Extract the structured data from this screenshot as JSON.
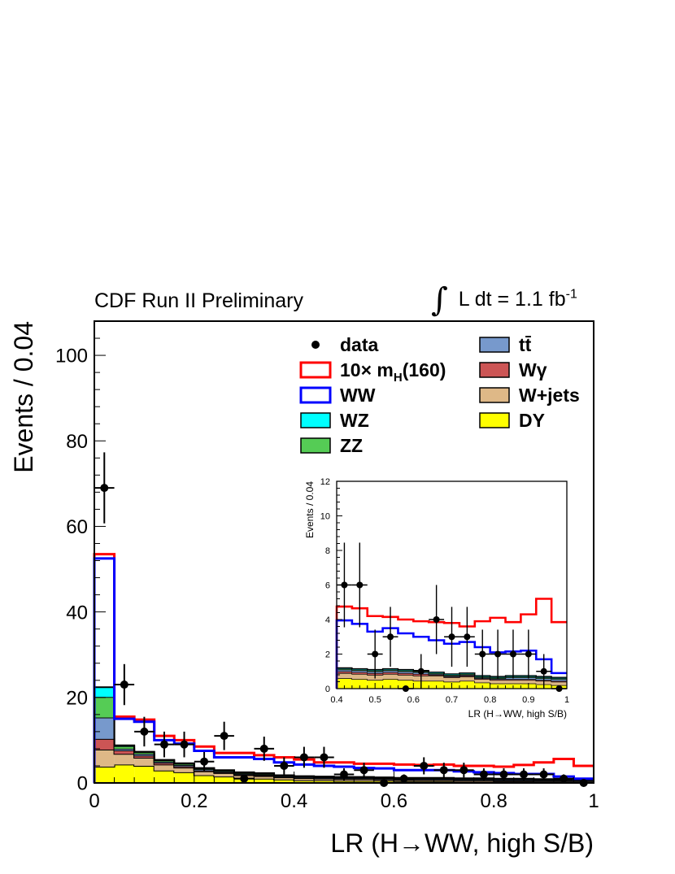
{
  "header": {
    "left": "CDF Run II Preliminary",
    "integral": "∫",
    "lumi_text": "L dt = 1.1 fb",
    "lumi_exp": "-1"
  },
  "colors": {
    "signal": "#ff0000",
    "ww": "#0000ff",
    "wz": "#00ffff",
    "zz": "#55cc55",
    "tt": "#7799cc",
    "wgamma": "#cc5555",
    "wjets": "#deb887",
    "dy": "#ffff00"
  },
  "legend": [
    {
      "key": "data",
      "label": "data",
      "style": "marker"
    },
    {
      "key": "signal",
      "label": "10× m",
      "sub": "H",
      "tail": "(160)",
      "style": "line"
    },
    {
      "key": "ww",
      "label": "WW",
      "style": "line"
    },
    {
      "key": "wz",
      "label": "WZ",
      "style": "fill"
    },
    {
      "key": "zz",
      "label": "ZZ",
      "style": "fill"
    },
    {
      "key": "tt",
      "label": "tt̄",
      "style": "fill"
    },
    {
      "key": "wgamma",
      "label": "Wγ",
      "style": "fill"
    },
    {
      "key": "wjets",
      "label": "W+jets",
      "style": "fill"
    },
    {
      "key": "dy",
      "label": "DY",
      "style": "fill"
    }
  ],
  "chart_data": [
    {
      "type": "histogram",
      "name": "main",
      "xlabel": "LR (H→WW, high S/B)",
      "ylabel": "Events / 0.04",
      "xlim": [
        0,
        1
      ],
      "ylim": [
        0,
        108
      ],
      "xticks": [
        0,
        0.2,
        0.4,
        0.6,
        0.8,
        1
      ],
      "xticklabels": [
        "0",
        "0.2",
        "0.4",
        "0.6",
        "0.8",
        "1"
      ],
      "yticks": [
        0,
        20,
        40,
        60,
        80,
        100
      ],
      "yticklabels": [
        "0",
        "20",
        "40",
        "60",
        "80",
        "100"
      ],
      "bin_edges": [
        0,
        0.04,
        0.08,
        0.12,
        0.16,
        0.2,
        0.24,
        0.28,
        0.32,
        0.36,
        0.4,
        0.44,
        0.48,
        0.52,
        0.56,
        0.6,
        0.64,
        0.68,
        0.72,
        0.76,
        0.8,
        0.84,
        0.88,
        0.92,
        0.96,
        1.0
      ],
      "stack_order": [
        "dy",
        "wjets",
        "wgamma",
        "tt",
        "zz",
        "wz"
      ],
      "stack": {
        "dy": [
          3.8,
          4.3,
          4.0,
          2.9,
          2.5,
          1.8,
          1.5,
          1.2,
          1.0,
          0.8,
          0.6,
          0.6,
          0.5,
          0.5,
          0.5,
          0.4,
          0.4,
          0.4,
          0.3,
          0.3,
          0.3,
          0.3,
          0.2,
          0.2,
          0.2
        ],
        "wjets": [
          4.0,
          2.5,
          1.9,
          1.4,
          1.1,
          0.9,
          0.8,
          0.6,
          0.6,
          0.5,
          0.5,
          0.4,
          0.4,
          0.4,
          0.3,
          0.3,
          0.3,
          0.3,
          0.3,
          0.3,
          0.2,
          0.2,
          0.2,
          0.2,
          0.2
        ],
        "wgamma": [
          2.5,
          0.8,
          0.5,
          0.4,
          0.3,
          0.2,
          0.2,
          0.2,
          0.2,
          0.1,
          0.1,
          0.1,
          0.1,
          0.1,
          0.1,
          0.1,
          0.1,
          0.1,
          0.1,
          0.1,
          0.1,
          0.1,
          0.1,
          0.1,
          0.1
        ],
        "tt": [
          5.0,
          0.4,
          0.4,
          0.3,
          0.3,
          0.3,
          0.2,
          0.2,
          0.2,
          0.2,
          0.2,
          0.2,
          0.2,
          0.2,
          0.2,
          0.2,
          0.2,
          0.2,
          0.2,
          0.2,
          0.2,
          0.2,
          0.2,
          0.2,
          0.2
        ],
        "zz": [
          4.8,
          0.6,
          0.4,
          0.3,
          0.3,
          0.2,
          0.2,
          0.2,
          0.2,
          0.1,
          0.1,
          0.1,
          0.1,
          0.1,
          0.1,
          0.1,
          0.1,
          0.1,
          0.1,
          0.1,
          0.1,
          0.1,
          0.1,
          0.1,
          0.1
        ],
        "wz": [
          2.3,
          0.2,
          0.1,
          0.1,
          0.1,
          0.1,
          0.1,
          0.1,
          0.1,
          0.1,
          0.1,
          0.1,
          0.1,
          0.1,
          0.1,
          0.1,
          0.1,
          0.1,
          0.1,
          0.1,
          0.1,
          0.1,
          0.1,
          0.1,
          0.1
        ]
      },
      "ww_total": [
        52.5,
        15.0,
        14.3,
        10.0,
        9.2,
        7.5,
        6.0,
        6.0,
        5.6,
        4.8,
        4.3,
        4.0,
        3.8,
        3.5,
        3.4,
        3.0,
        3.0,
        3.0,
        2.7,
        2.5,
        2.3,
        2.1,
        2.1,
        1.5,
        1.0
      ],
      "signal_total": [
        53.5,
        15.5,
        14.8,
        11.0,
        10.0,
        8.5,
        7.0,
        7.0,
        6.5,
        6.0,
        5.5,
        4.8,
        4.8,
        4.5,
        4.5,
        4.3,
        4.2,
        4.3,
        4.0,
        4.0,
        3.8,
        4.2,
        4.8,
        5.6,
        4.0
      ],
      "data": {
        "x": [
          0.02,
          0.06,
          0.1,
          0.14,
          0.18,
          0.22,
          0.26,
          0.3,
          0.34,
          0.38,
          0.42,
          0.46,
          0.5,
          0.54,
          0.58,
          0.62,
          0.66,
          0.7,
          0.74,
          0.78,
          0.82,
          0.86,
          0.9,
          0.94,
          0.98
        ],
        "y": [
          69,
          23,
          12,
          9,
          9,
          5,
          11,
          1,
          8,
          4,
          6,
          6,
          2,
          3,
          0,
          1,
          4,
          3,
          3,
          2,
          2,
          2,
          2,
          1,
          0
        ]
      }
    },
    {
      "type": "histogram",
      "name": "inset",
      "xlabel": "LR (H→WW, high S/B)",
      "ylabel": "Events / 0.04",
      "xlim": [
        0.4,
        1
      ],
      "ylim": [
        0,
        12
      ],
      "xticks": [
        0.4,
        0.5,
        0.6,
        0.7,
        0.8,
        0.9,
        1
      ],
      "xticklabels": [
        "0.4",
        "0.5",
        "0.6",
        "0.7",
        "0.8",
        "0.9",
        "1"
      ],
      "yticks": [
        0,
        2,
        4,
        6,
        8,
        10,
        12
      ],
      "yticklabels": [
        "0",
        "2",
        "4",
        "6",
        "8",
        "10",
        "12"
      ],
      "bin_edges": [
        0.4,
        0.44,
        0.48,
        0.52,
        0.56,
        0.6,
        0.64,
        0.68,
        0.72,
        0.76,
        0.8,
        0.84,
        0.88,
        0.92,
        0.96,
        1.0
      ],
      "stack_order": [
        "dy",
        "wjets",
        "wgamma",
        "tt",
        "zz",
        "wz"
      ],
      "stack": {
        "dy": [
          0.6,
          0.55,
          0.5,
          0.55,
          0.5,
          0.45,
          0.45,
          0.4,
          0.45,
          0.35,
          0.3,
          0.3,
          0.3,
          0.25,
          0.2
        ],
        "wjets": [
          0.3,
          0.3,
          0.3,
          0.3,
          0.3,
          0.3,
          0.3,
          0.25,
          0.25,
          0.2,
          0.2,
          0.2,
          0.2,
          0.2,
          0.2
        ],
        "wgamma": [
          0.1,
          0.1,
          0.1,
          0.1,
          0.1,
          0.1,
          0.05,
          0.05,
          0.05,
          0.05,
          0.05,
          0.05,
          0.05,
          0.05,
          0.05
        ],
        "tt": [
          0.1,
          0.1,
          0.1,
          0.1,
          0.1,
          0.1,
          0.05,
          0.05,
          0.05,
          0.05,
          0.05,
          0.1,
          0.1,
          0.1,
          0.1
        ],
        "zz": [
          0.05,
          0.05,
          0.05,
          0.05,
          0.05,
          0.05,
          0.05,
          0.05,
          0.05,
          0.05,
          0.05,
          0.05,
          0.05,
          0.05,
          0.05
        ],
        "wz": [
          0.05,
          0.05,
          0.05,
          0.05,
          0.05,
          0.05,
          0.05,
          0.05,
          0.05,
          0.05,
          0.05,
          0.05,
          0.05,
          0.05,
          0.05
        ]
      },
      "ww_total": [
        3.95,
        3.75,
        3.3,
        3.5,
        3.2,
        3.0,
        2.8,
        2.6,
        2.7,
        2.4,
        2.1,
        2.15,
        2.2,
        1.7,
        0.9
      ],
      "signal_total": [
        4.75,
        4.65,
        4.2,
        4.15,
        4.0,
        3.9,
        3.85,
        3.8,
        3.6,
        3.9,
        4.1,
        3.85,
        4.3,
        5.2,
        3.85
      ],
      "data": {
        "x": [
          0.42,
          0.46,
          0.5,
          0.54,
          0.58,
          0.62,
          0.66,
          0.7,
          0.74,
          0.78,
          0.82,
          0.86,
          0.9,
          0.94,
          0.98
        ],
        "y": [
          6,
          6,
          2,
          3,
          0,
          1,
          4,
          3,
          3,
          2,
          2,
          2,
          2,
          1,
          0
        ]
      }
    }
  ]
}
